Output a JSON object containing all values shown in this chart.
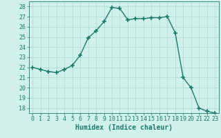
{
  "x": [
    0,
    1,
    2,
    3,
    4,
    5,
    6,
    7,
    8,
    9,
    10,
    11,
    12,
    13,
    14,
    15,
    16,
    17,
    18,
    19,
    20,
    21,
    22,
    23
  ],
  "y": [
    22.0,
    21.8,
    21.6,
    21.5,
    21.8,
    22.2,
    23.2,
    24.9,
    25.6,
    26.5,
    27.9,
    27.8,
    26.7,
    26.8,
    26.8,
    26.9,
    26.9,
    27.0,
    25.4,
    21.0,
    20.0,
    18.0,
    17.7,
    17.5
  ],
  "line_color": "#1a7a6e",
  "marker": "+",
  "marker_size": 4,
  "marker_lw": 1.2,
  "bg_color": "#cff0eb",
  "grid_color": "#a8d8d2",
  "xlabel": "Humidex (Indice chaleur)",
  "ylim": [
    17.5,
    28.5
  ],
  "xlim": [
    -0.5,
    23.5
  ],
  "yticks": [
    18,
    19,
    20,
    21,
    22,
    23,
    24,
    25,
    26,
    27,
    28
  ],
  "xticks": [
    0,
    1,
    2,
    3,
    4,
    5,
    6,
    7,
    8,
    9,
    10,
    11,
    12,
    13,
    14,
    15,
    16,
    17,
    18,
    19,
    20,
    21,
    22,
    23
  ],
  "label_fontsize": 7,
  "tick_fontsize": 6,
  "tick_color": "#1a7a6e",
  "axis_color": "#1a7a6e",
  "line_width": 1.0
}
